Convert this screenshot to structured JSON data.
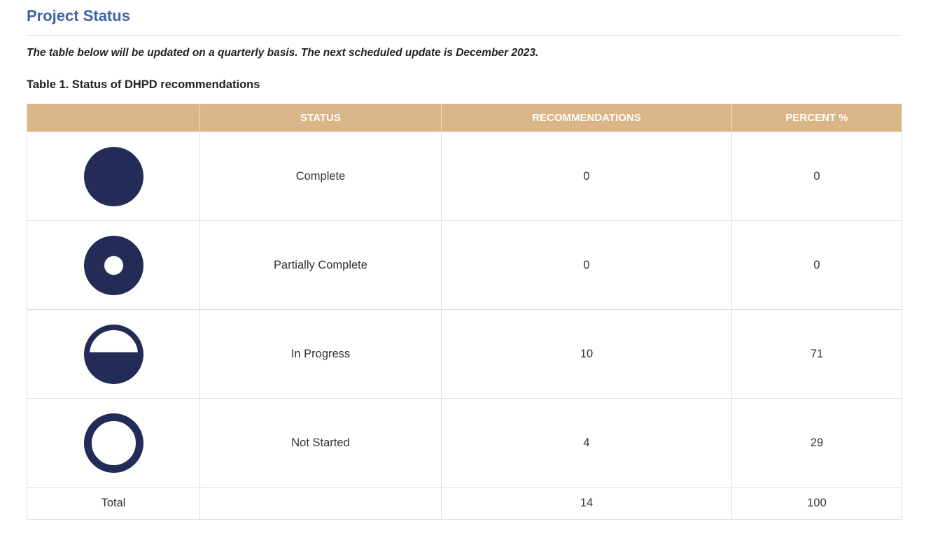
{
  "page": {
    "title": "Project Status",
    "intro": "The table below will be updated on a quarterly basis. The next scheduled update is December 2023.",
    "table_caption": "Table 1. Status of DHPD recommendations"
  },
  "table": {
    "columns": [
      "",
      "STATUS",
      "RECOMMENDATIONS",
      "PERCENT %"
    ],
    "rows": [
      {
        "icon": "complete-circle-icon",
        "status": "Complete",
        "recommendations": "0",
        "percent": "0"
      },
      {
        "icon": "partially-complete-circle-icon",
        "status": "Partially Complete",
        "recommendations": "0",
        "percent": "0"
      },
      {
        "icon": "in-progress-circle-icon",
        "status": "In Progress",
        "recommendations": "10",
        "percent": "71"
      },
      {
        "icon": "not-started-circle-icon",
        "status": "Not Started",
        "recommendations": "4",
        "percent": "29"
      }
    ],
    "total": {
      "label": "Total",
      "recommendations": "14",
      "percent": "100"
    }
  },
  "colors": {
    "heading_blue": "#3d63a9",
    "header_tan": "#dab587",
    "icon_navy": "#222c56",
    "border_gray": "#dedede"
  }
}
